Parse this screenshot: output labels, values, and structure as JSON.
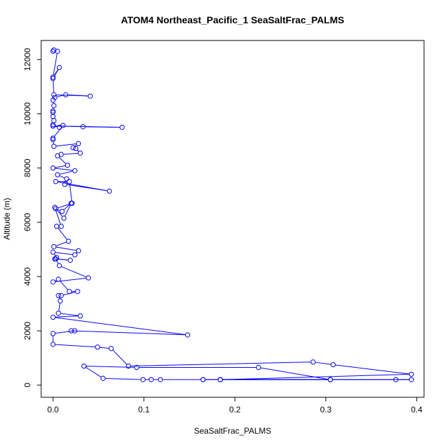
{
  "chart_data": {
    "type": "line",
    "title": "ATOM4 Northeast_Pacific_1 SeaSaltFrac_PALMS",
    "xlabel": "SeaSaltFrac_PALMS",
    "ylabel": "Altitude (m)",
    "xlim": [
      -0.013,
      0.408
    ],
    "ylim": [
      -450,
      12700
    ],
    "xticks": [
      0,
      0.1,
      0.2,
      0.3,
      0.4
    ],
    "xtick_labels": [
      "0.0",
      "0.1",
      "0.2",
      "0.3",
      "0.4"
    ],
    "yticks": [
      0,
      2000,
      4000,
      6000,
      8000,
      10000,
      12000
    ],
    "ytick_labels": [
      "0",
      "2000",
      "4000",
      "6000",
      "8000",
      "10000",
      "12000"
    ],
    "grid": false,
    "series": [
      {
        "markers": "open-circle",
        "color": "#0000ff",
        "x": [
          0.0,
          0.001,
          0.005,
          0.0,
          0.007,
          0.0,
          0.001,
          0.041,
          0.014,
          0.002,
          0.0,
          0.001,
          0.0,
          0.0,
          0.0,
          0.001,
          0.0,
          0.0,
          0.033,
          0.076,
          0.0,
          0.007,
          0.011,
          0.0,
          0.0,
          0.001,
          0.028,
          0.022,
          0.025,
          0.03,
          0.009,
          0.005,
          0.016,
          0.0,
          0.024,
          0.005,
          0.015,
          0.013,
          0.062,
          0.003,
          0.018,
          0.021,
          0.003,
          0.01,
          0.02,
          0.012,
          0.002,
          0.009,
          0.004,
          0.017,
          0.001,
          0.028,
          0.024,
          0.0,
          0.004,
          0.002,
          0.019,
          0.003,
          0.007,
          0.039,
          0.0,
          0.006,
          0.018,
          0.027,
          0.009,
          0.006,
          0.008,
          0.006,
          0.03,
          0.0,
          0.148,
          0.02,
          0.024,
          0.0,
          0.0,
          0.049,
          0.064,
          0.083,
          0.286,
          0.308,
          0.394,
          0.184,
          0.305,
          0.226,
          0.092,
          0.034,
          0.055,
          0.099,
          0.108,
          0.118,
          0.165,
          0.184,
          0.305,
          0.377,
          0.394,
          0.305,
          0.184,
          0.165
        ],
        "y": [
          12300,
          12350,
          12300,
          11350,
          11700,
          11300,
          10700,
          10650,
          10700,
          10600,
          10500,
          10300,
          10100,
          10050,
          9900,
          9750,
          9600,
          9550,
          9520,
          9500,
          9550,
          9500,
          9570,
          9100,
          9050,
          8800,
          8900,
          8750,
          8720,
          8550,
          8500,
          8450,
          8100,
          8000,
          7900,
          7750,
          7600,
          7400,
          7150,
          7500,
          7500,
          6700,
          6500,
          6400,
          6700,
          6150,
          6550,
          5850,
          5850,
          5300,
          5100,
          4950,
          4800,
          4900,
          4700,
          4650,
          4600,
          4650,
          4400,
          3950,
          3800,
          3900,
          3450,
          3450,
          3300,
          3300,
          3100,
          2650,
          2550,
          2500,
          1850,
          2000,
          2000,
          1900,
          1500,
          1400,
          1350,
          700,
          850,
          750,
          400,
          200,
          200,
          650,
          650,
          700,
          250,
          200,
          200,
          200,
          200,
          200,
          200,
          200,
          200,
          200,
          200,
          200
        ]
      }
    ]
  }
}
